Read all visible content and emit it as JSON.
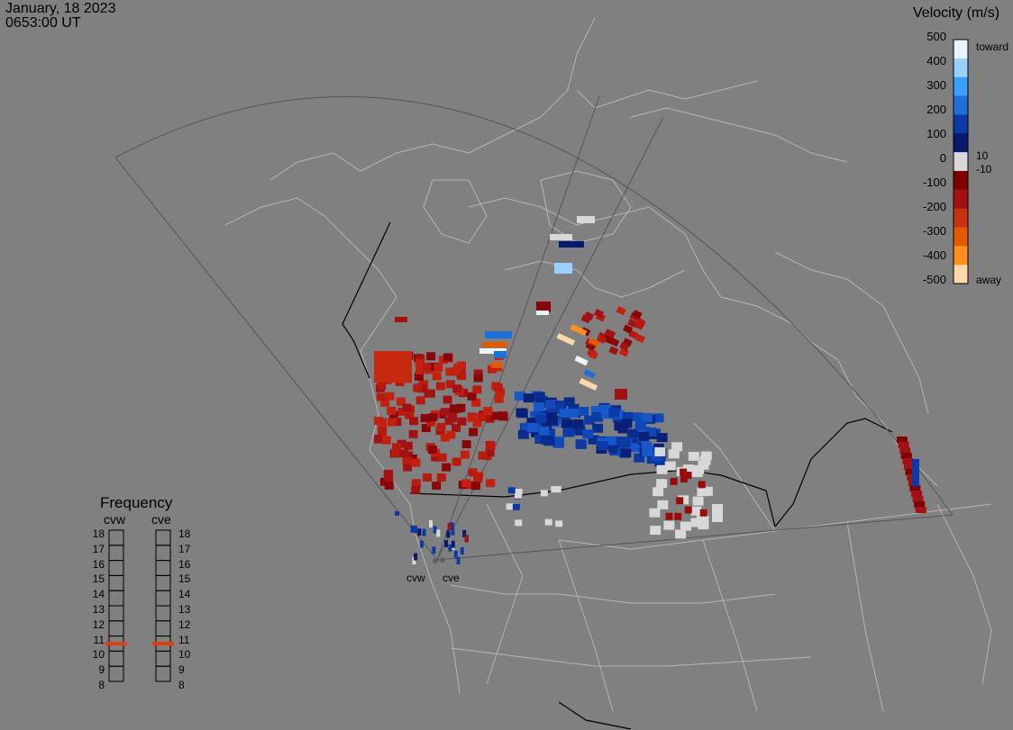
{
  "header": {
    "date": "January, 18 2023",
    "time": "0653:00 UT"
  },
  "velocity_legend": {
    "title": "Velocity (m/s)",
    "ticks": [
      "500",
      "400",
      "300",
      "200",
      "100",
      "0",
      "-100",
      "-200",
      "-300",
      "-400",
      "-500"
    ],
    "label_toward": "toward",
    "label_away": "away",
    "label_pos": "10",
    "label_neg": "-10",
    "colors": [
      "#e8f4ff",
      "#9ad0ff",
      "#3aa0ff",
      "#1e6fd8",
      "#0b3aa6",
      "#081a6e",
      "#d8d8d8",
      "#7e0000",
      "#a31212",
      "#c8320e",
      "#e35a00",
      "#ff9020",
      "#ffd7a8"
    ]
  },
  "frequency_panel": {
    "title": "Frequency",
    "radars": [
      {
        "name": "cvw",
        "selected_mhz": 10.5
      },
      {
        "name": "cve",
        "selected_mhz": 10.5
      }
    ],
    "levels": [
      "18",
      "17",
      "16",
      "15",
      "14",
      "13",
      "12",
      "11",
      "10",
      "9",
      "8"
    ],
    "marker_color": "#e04010"
  },
  "map": {
    "background": "#808080",
    "land_line_color": "#b8b8b8",
    "fov_line_color": "#555555",
    "radar_sites": [
      {
        "name": "cvw"
      },
      {
        "name": "cve"
      }
    ]
  }
}
